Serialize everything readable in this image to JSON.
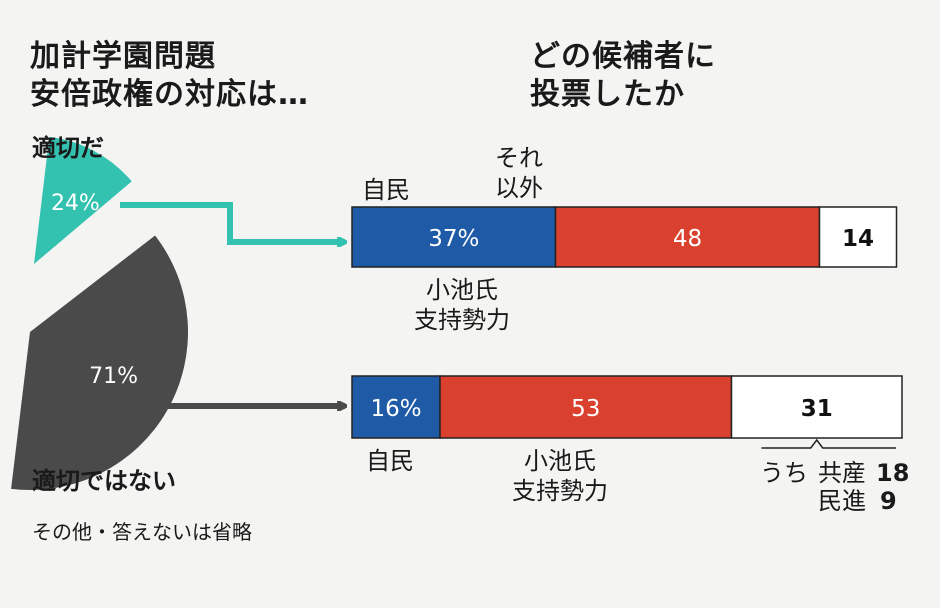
{
  "left_title": "加計学園問題\n安倍政権の対応は…",
  "right_title": "どの候補者に\n投票したか",
  "note": "その他・答えないは省略",
  "colors": {
    "teal": "#33c2b0",
    "gray": "#4a4a4a",
    "blue": "#1e5aa6",
    "red": "#d9412e",
    "white": "#ffffff"
  },
  "chart_data": [
    {
      "type": "pie",
      "title": "加計学園問題 安倍政権の対応は…",
      "slices": [
        {
          "label": "適切だ",
          "value": 24,
          "display": "24%"
        },
        {
          "label": "適切ではない",
          "value": 71,
          "display": "71%"
        }
      ]
    },
    {
      "type": "bar",
      "stacked": true,
      "orientation": "horizontal",
      "title": "どの候補者に投票したか",
      "categories": [
        "適切だ",
        "適切ではない"
      ],
      "series": [
        {
          "name": "自民",
          "values": [
            37,
            16
          ],
          "display": [
            "37%",
            "16%"
          ]
        },
        {
          "name": "小池氏\n支持勢力",
          "values": [
            48,
            53
          ],
          "display": [
            "48",
            "53"
          ]
        },
        {
          "name": "それ\n以外",
          "values": [
            14,
            31
          ],
          "display": [
            "14",
            "31"
          ]
        }
      ],
      "breakdown": {
        "prefix": "うち",
        "items": [
          {
            "party": "共産",
            "value": "18"
          },
          {
            "party": "民進",
            "value": "9"
          }
        ]
      }
    }
  ]
}
